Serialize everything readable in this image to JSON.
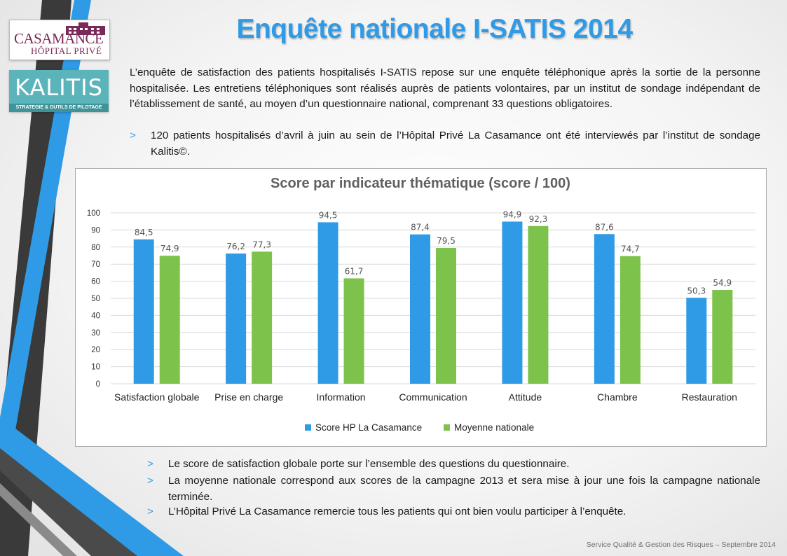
{
  "logos": {
    "casamance_name": "CASAMANCE",
    "casamance_sub": "HÔPITAL PRIVÉ",
    "kalitis_name": "KALITIS",
    "kalitis_tagline": "STRATEGIE & OUTILS DE PILOTAGE"
  },
  "title": "Enquête nationale I-SATIS 2014",
  "intro": "L’enquête de satisfaction des patients hospitalisés I-SATIS repose sur une enquête téléphonique après la sortie de la personne hospitalisée. Les entretiens téléphoniques sont réalisés auprès de patients volontaires, par un institut de sondage indépendant de l’établissement de santé, au moyen d’un questionnaire national, comprenant 33 questions obligatoires.",
  "intro_bullet": "120 patients hospitalisés d’avril à juin au sein de l’Hôpital Privé La Casamance ont été interviewés par l’institut de sondage Kalitis©.",
  "bullet_marker": ">",
  "notes": [
    "Le score de satisfaction globale porte sur l’ensemble des questions du questionnaire.",
    "La moyenne nationale correspond aux scores de la campagne 2013 et sera mise à jour une fois la campagne nationale terminée.",
    "L’Hôpital Privé La Casamance remercie tous les patients qui ont bien voulu participer à l’enquête."
  ],
  "footer": "Service  Qualité & Gestion des Risques – Septembre  2014",
  "colors": {
    "title": "#2f9be6",
    "series_hp": "#2f9be6",
    "series_national": "#7dc24b",
    "bullet": "#2f9be6"
  },
  "chart_data": {
    "type": "bar",
    "title": "Score par indicateur thématique (score / 100)",
    "categories": [
      "Satisfaction globale",
      "Prise en charge",
      "Information",
      "Communication",
      "Attitude",
      "Chambre",
      "Restauration"
    ],
    "series": [
      {
        "name": "Score HP La Casamance",
        "values": [
          84.5,
          76.2,
          94.5,
          87.4,
          94.9,
          87.6,
          50.3
        ],
        "labels": [
          "84,5",
          "76,2",
          "94,5",
          "87,4",
          "94,9",
          "87,6",
          "50,3"
        ]
      },
      {
        "name": "Moyenne nationale",
        "values": [
          74.9,
          77.3,
          61.7,
          79.5,
          92.3,
          74.7,
          54.9
        ],
        "labels": [
          "74,9",
          "77,3",
          "61,7",
          "79,5",
          "92,3",
          "74,7",
          "54,9"
        ]
      }
    ],
    "ylim": [
      0,
      100
    ],
    "yticks": [
      0,
      10,
      20,
      30,
      40,
      50,
      60,
      70,
      80,
      90,
      100
    ],
    "grid": true,
    "legend": "bottom"
  }
}
